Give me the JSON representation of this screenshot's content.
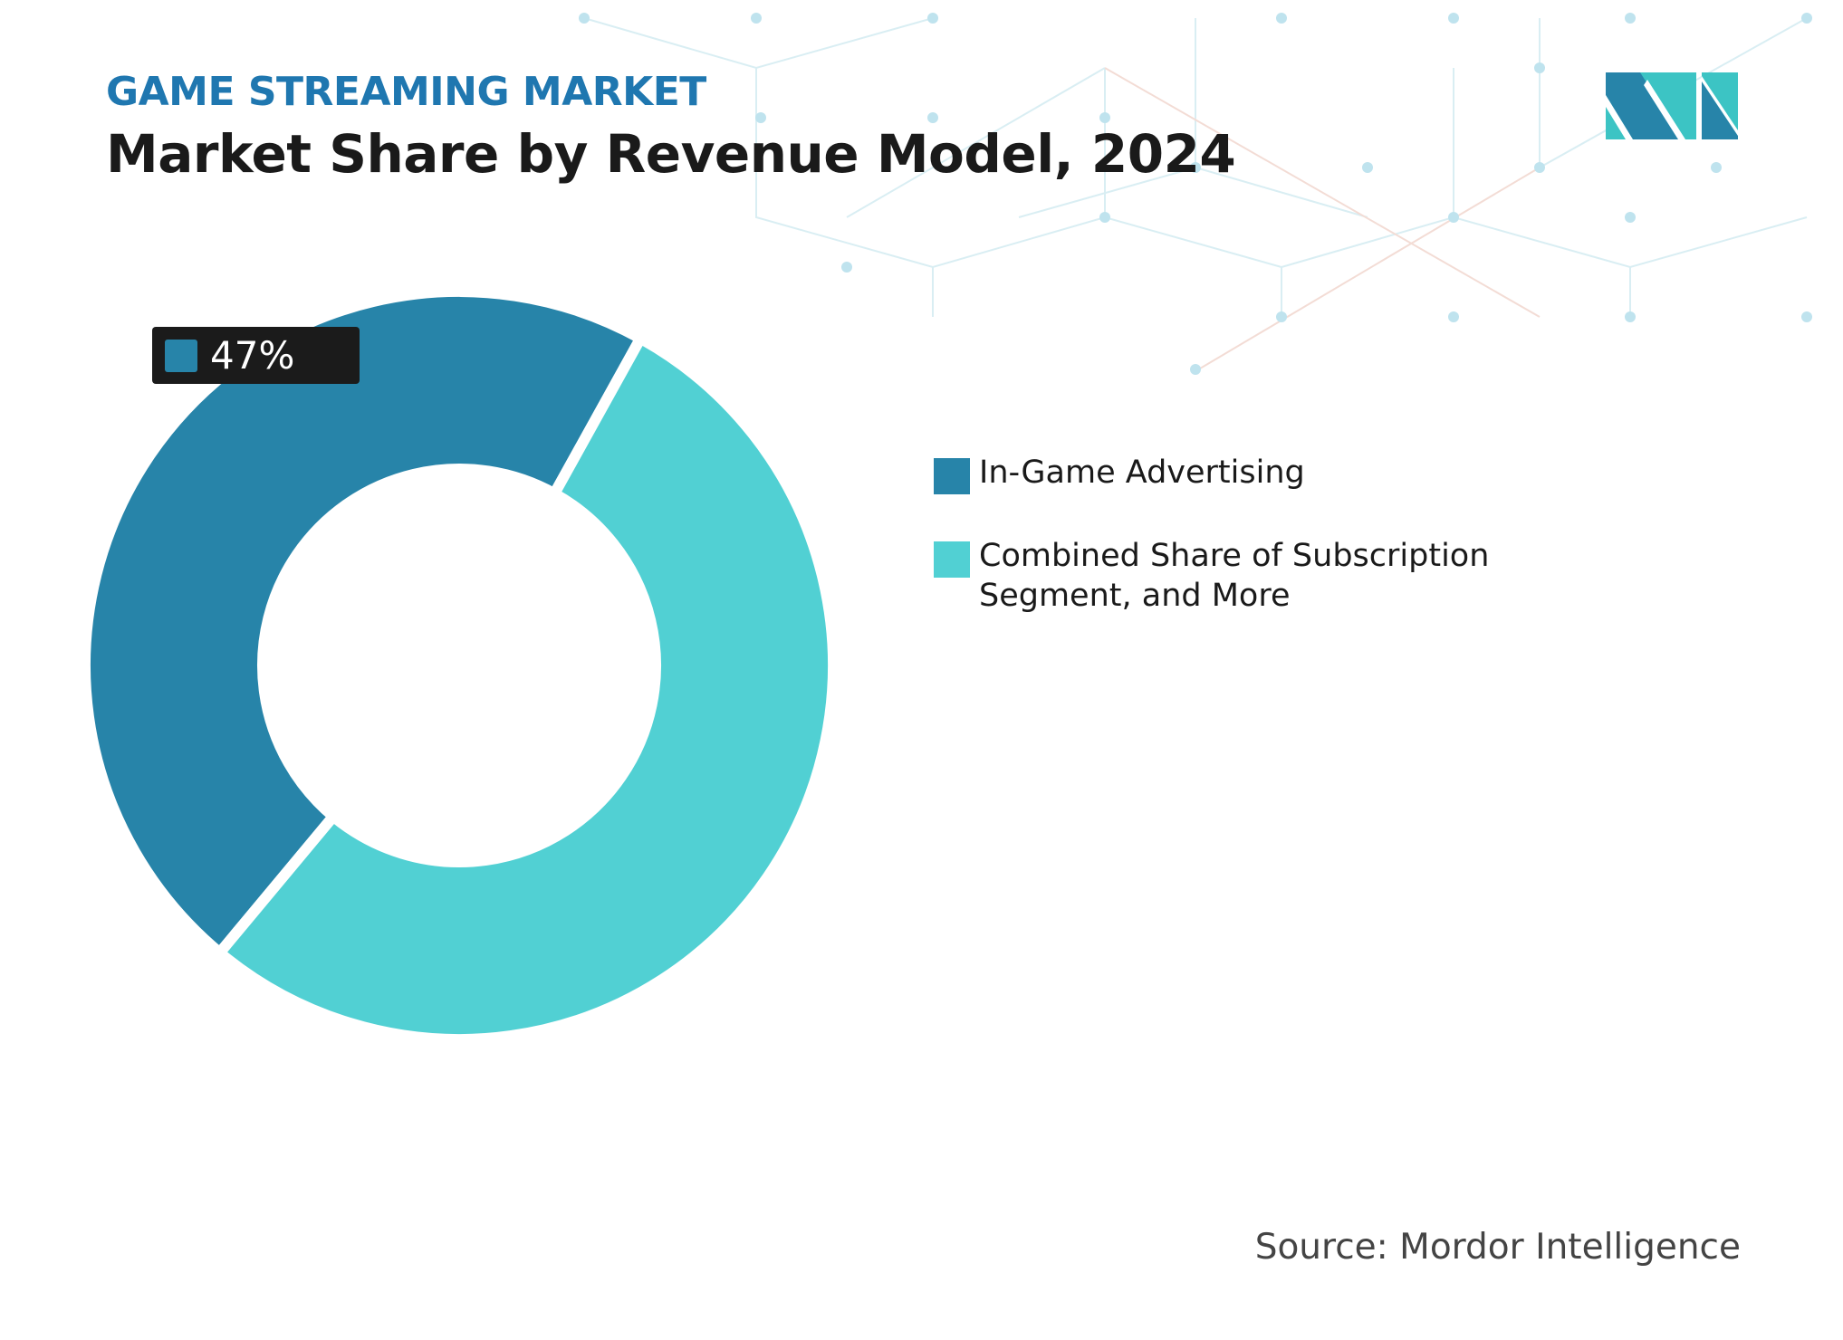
{
  "header": {
    "subtitle": "GAME STREAMING MARKET",
    "title": "Market Share by Revenue Model, 2024"
  },
  "chart_data": {
    "type": "pie",
    "variant": "donut",
    "categories": [
      "In-Game Advertising",
      "Combined Share of Subscription Segment, and More"
    ],
    "values": [
      47,
      53
    ],
    "colors": [
      "#2784a9",
      "#51d0d3"
    ],
    "data_labels": [
      {
        "category": "In-Game Advertising",
        "text": "47%"
      }
    ],
    "legend_position": "right"
  },
  "legend": {
    "items": [
      {
        "label": "In-Game Advertising",
        "color": "#2784a9"
      },
      {
        "label": "Combined Share of Subscription Segment, and More",
        "color": "#51d0d3"
      }
    ]
  },
  "source": "Source: Mordor Intelligence",
  "logo": {
    "name": "mordor-intelligence-logo",
    "text": "MI",
    "colors": [
      "#2784a9",
      "#3cc4c4"
    ]
  }
}
